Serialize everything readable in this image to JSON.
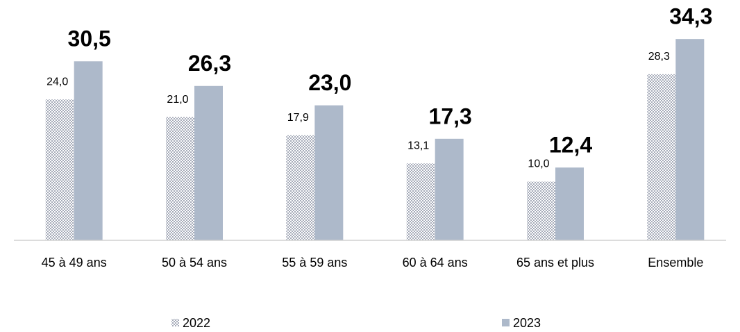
{
  "chart_data": {
    "type": "bar",
    "categories": [
      "45 à 49 ans",
      "50 à 54 ans",
      "55 à 59 ans",
      "60 à 64 ans",
      "65 ans et plus",
      "Ensemble"
    ],
    "series": [
      {
        "name": "2022",
        "color": "#b4b9c6",
        "pattern": true,
        "values": [
          24.0,
          21.0,
          17.9,
          13.1,
          10.0,
          28.3
        ],
        "value_labels": [
          "24,0",
          "21,0",
          "17,9",
          "13,1",
          "10,0",
          "28,3"
        ]
      },
      {
        "name": "2023",
        "color": "#adb9ca",
        "pattern": false,
        "values": [
          30.5,
          26.3,
          23.0,
          17.3,
          12.4,
          34.3
        ],
        "value_labels": [
          "30,5",
          "26,3",
          "23,0",
          "17,3",
          "12,4",
          "34,3"
        ]
      }
    ],
    "ylim": [
      0,
      40
    ],
    "grid": false
  }
}
